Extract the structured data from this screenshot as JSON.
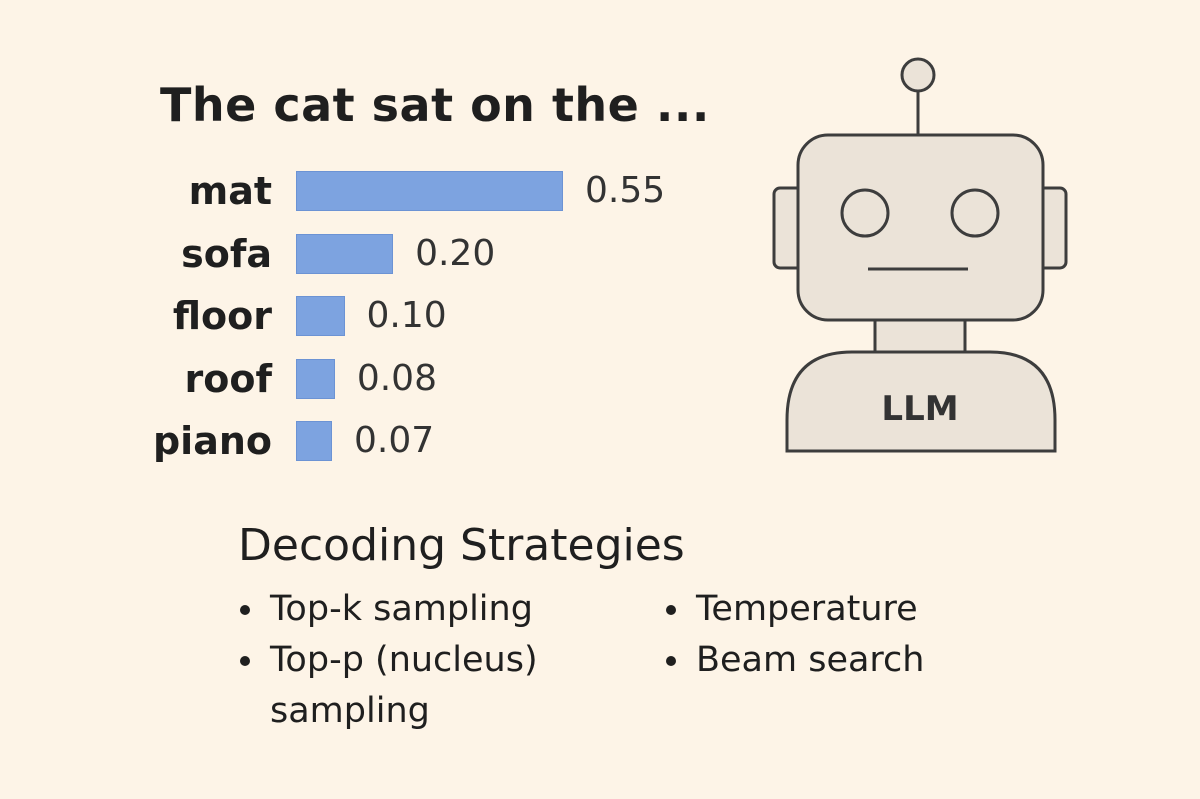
{
  "prompt": "The cat sat on the ...",
  "chart_data": {
    "type": "bar",
    "orientation": "horizontal",
    "categories": [
      "mat",
      "sofa",
      "floor",
      "roof",
      "piano"
    ],
    "values": [
      0.55,
      0.2,
      0.1,
      0.08,
      0.07
    ],
    "value_labels": [
      "0.55",
      "0.20",
      "0.10",
      "0.08",
      "0.07"
    ],
    "bar_color": "#7da3e0",
    "xlim": [
      0,
      0.55
    ],
    "grid": false,
    "legend": "none"
  },
  "robot": {
    "label": "LLM",
    "icon": "robot-icon"
  },
  "strategies": {
    "title": "Decoding Strategies",
    "left": [
      "Top-k sampling",
      "Top-p (nucleus)\nsampling"
    ],
    "right": [
      "Temperature",
      "Beam search"
    ]
  }
}
